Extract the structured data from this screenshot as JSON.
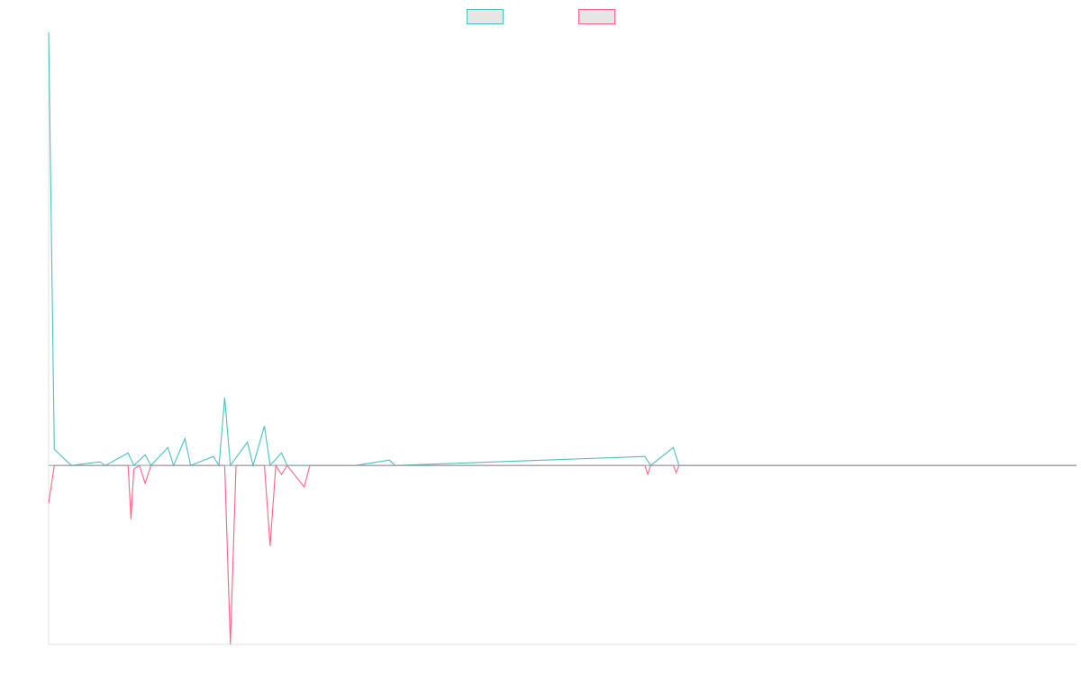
{
  "chart_data": {
    "type": "line",
    "title": "",
    "xlabel": "",
    "ylabel": "",
    "grid": false,
    "legend_position": "top-center",
    "x_range": [
      0,
      181
    ],
    "y_range": [
      -1.0,
      2.42
    ],
    "baseline": 0,
    "x_step": 1,
    "series": [
      {
        "name": "",
        "color": "#4bc0c0",
        "fill": "#e6e6e6",
        "points": [
          [
            0,
            2.42
          ],
          [
            1,
            0.09
          ],
          [
            4,
            0.0
          ],
          [
            9,
            0.02
          ],
          [
            10,
            0.0
          ],
          [
            14,
            0.07
          ],
          [
            15,
            0.0
          ],
          [
            17,
            0.06
          ],
          [
            18,
            0.0
          ],
          [
            21,
            0.1
          ],
          [
            22,
            0.0
          ],
          [
            24,
            0.15
          ],
          [
            25,
            0.0
          ],
          [
            29,
            0.05
          ],
          [
            30,
            0.0
          ],
          [
            31,
            0.38
          ],
          [
            32,
            0.0
          ],
          [
            35,
            0.13
          ],
          [
            36,
            0.0
          ],
          [
            38,
            0.22
          ],
          [
            39,
            0.0
          ],
          [
            41,
            0.07
          ],
          [
            42,
            0.0
          ],
          [
            45,
            0.0
          ],
          [
            49,
            0.0
          ],
          [
            54,
            0.0
          ],
          [
            60,
            0.03
          ],
          [
            61,
            0.0
          ],
          [
            105,
            0.05
          ],
          [
            106,
            0.0
          ],
          [
            110,
            0.1
          ],
          [
            111,
            0.0
          ],
          [
            181,
            0.0
          ]
        ]
      },
      {
        "name": "",
        "color": "#ff6384",
        "fill": "#e6e6e6",
        "points": [
          [
            0,
            -0.21
          ],
          [
            1,
            0.0
          ],
          [
            14,
            0.0
          ],
          [
            14.5,
            -0.3
          ],
          [
            15,
            -0.02
          ],
          [
            16,
            0.0
          ],
          [
            17,
            -0.1
          ],
          [
            18,
            0.0
          ],
          [
            31,
            0.0
          ],
          [
            32,
            -1.0
          ],
          [
            33,
            0.0
          ],
          [
            38,
            0.0
          ],
          [
            39,
            -0.45
          ],
          [
            40,
            0.0
          ],
          [
            41,
            -0.05
          ],
          [
            42,
            0.0
          ],
          [
            45,
            -0.12
          ],
          [
            46,
            0.0
          ],
          [
            105,
            0.0
          ],
          [
            105.5,
            -0.05
          ],
          [
            106,
            0.0
          ],
          [
            110,
            0.0
          ],
          [
            110.5,
            -0.04
          ],
          [
            111,
            0.0
          ],
          [
            181,
            0.0
          ]
        ]
      }
    ]
  }
}
